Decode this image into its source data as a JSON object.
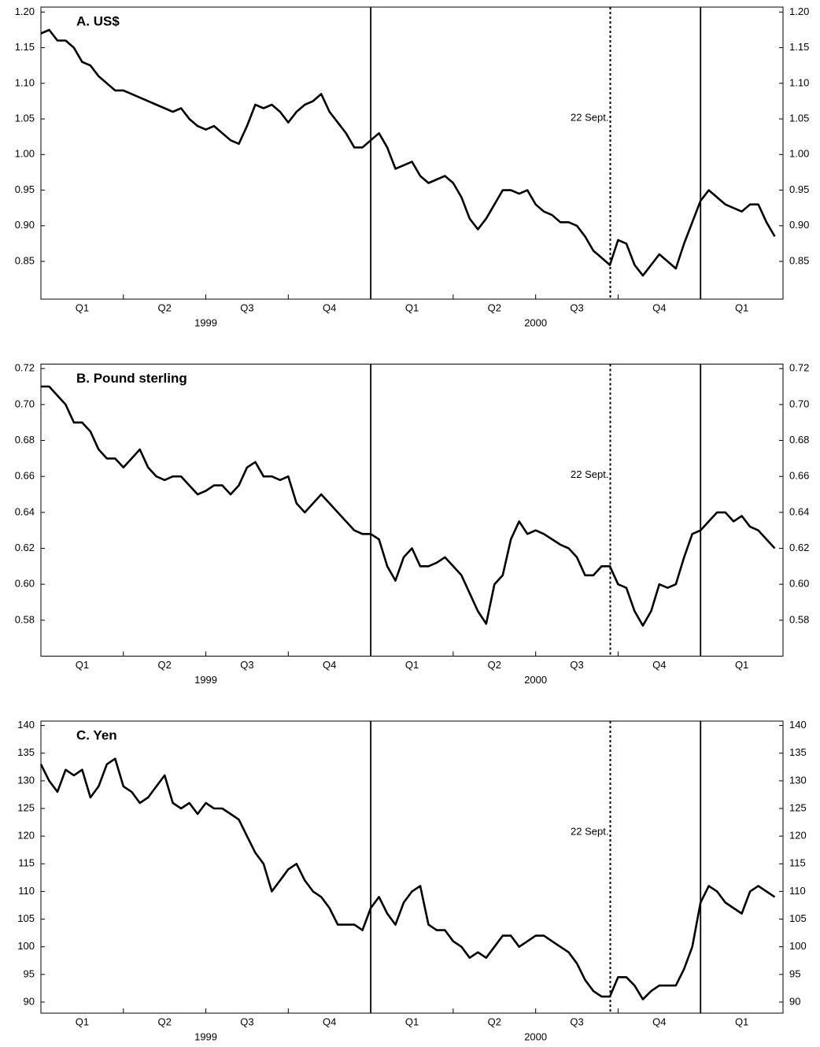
{
  "chart_data": [
    {
      "type": "line",
      "title": "A. US$",
      "color": "#000000",
      "x": [
        0,
        0.1,
        0.2,
        0.3,
        0.4,
        0.5,
        0.6,
        0.7,
        0.8,
        0.9,
        1,
        1.1,
        1.2,
        1.3,
        1.4,
        1.5,
        1.6,
        1.7,
        1.8,
        1.9,
        2,
        2.1,
        2.2,
        2.3,
        2.4,
        2.5,
        2.6,
        2.7,
        2.8,
        2.9,
        3,
        3.1,
        3.2,
        3.3,
        3.4,
        3.5,
        3.6,
        3.7,
        3.8,
        3.9,
        4,
        4.1,
        4.2,
        4.3,
        4.4,
        4.5,
        4.6,
        4.7,
        4.8,
        4.9,
        5,
        5.1,
        5.2,
        5.3,
        5.4,
        5.5,
        5.6,
        5.7,
        5.8,
        5.9,
        6,
        6.1,
        6.2,
        6.3,
        6.4,
        6.5,
        6.6,
        6.7,
        6.8,
        6.9,
        7,
        7.1,
        7.2,
        7.3,
        7.4,
        7.5,
        7.6,
        7.7,
        7.8,
        7.9,
        8,
        8.1,
        8.2,
        8.3,
        8.4,
        8.5,
        8.6,
        8.7,
        8.8,
        8.9
      ],
      "values": [
        1.17,
        1.175,
        1.16,
        1.16,
        1.15,
        1.13,
        1.125,
        1.11,
        1.1,
        1.09,
        1.09,
        1.085,
        1.08,
        1.075,
        1.07,
        1.065,
        1.06,
        1.065,
        1.05,
        1.04,
        1.035,
        1.04,
        1.03,
        1.02,
        1.015,
        1.04,
        1.07,
        1.065,
        1.07,
        1.06,
        1.045,
        1.06,
        1.07,
        1.075,
        1.085,
        1.06,
        1.045,
        1.03,
        1.01,
        1.01,
        1.02,
        1.03,
        1.01,
        0.98,
        0.985,
        0.99,
        0.97,
        0.96,
        0.965,
        0.97,
        0.96,
        0.94,
        0.91,
        0.895,
        0.91,
        0.93,
        0.95,
        0.95,
        0.945,
        0.95,
        0.93,
        0.92,
        0.915,
        0.905,
        0.905,
        0.9,
        0.885,
        0.865,
        0.855,
        0.845,
        0.88,
        0.875,
        0.845,
        0.83,
        0.845,
        0.86,
        0.85,
        0.84,
        0.875,
        0.905,
        0.935,
        0.95,
        0.94,
        0.93,
        0.925,
        0.92,
        0.93,
        0.93,
        0.905,
        0.885
      ],
      "xlim": [
        0,
        9
      ],
      "xticks": [
        1,
        2,
        3,
        4,
        5,
        6,
        7,
        8
      ],
      "ylim": [
        0.797,
        1.207
      ],
      "yticks": [
        {
          "value": 0.85,
          "label": "0.85"
        },
        {
          "value": 0.9,
          "label": "0.90"
        },
        {
          "value": 0.95,
          "label": "0.95"
        },
        {
          "value": 1.0,
          "label": "1.00"
        },
        {
          "value": 1.05,
          "label": "1.05"
        },
        {
          "value": 1.1,
          "label": "1.10"
        },
        {
          "value": 1.15,
          "label": "1.15"
        },
        {
          "value": 1.2,
          "label": "1.20"
        }
      ],
      "quarter_labels": [
        {
          "value": 0.5,
          "label": "Q1"
        },
        {
          "value": 1.5,
          "label": "Q2"
        },
        {
          "value": 2.5,
          "label": "Q3"
        },
        {
          "value": 3.5,
          "label": "Q4"
        },
        {
          "value": 4.5,
          "label": "Q1"
        },
        {
          "value": 5.5,
          "label": "Q2"
        },
        {
          "value": 6.5,
          "label": "Q3"
        },
        {
          "value": 7.5,
          "label": "Q4"
        },
        {
          "value": 8.5,
          "label": "Q1"
        }
      ],
      "year_labels": [
        {
          "value": 2,
          "label": "1999"
        },
        {
          "value": 6,
          "label": "2000"
        }
      ],
      "vlines": [
        {
          "x": 4,
          "style": "solid"
        },
        {
          "x": 8,
          "style": "solid"
        },
        {
          "x": 6.905,
          "style": "dotted",
          "label": "22 Sept."
        }
      ]
    },
    {
      "type": "line",
      "title": "B. Pound sterling",
      "color": "#000000",
      "x": [
        0,
        0.1,
        0.2,
        0.3,
        0.4,
        0.5,
        0.6,
        0.7,
        0.8,
        0.9,
        1,
        1.1,
        1.2,
        1.3,
        1.4,
        1.5,
        1.6,
        1.7,
        1.8,
        1.9,
        2,
        2.1,
        2.2,
        2.3,
        2.4,
        2.5,
        2.6,
        2.7,
        2.8,
        2.9,
        3,
        3.1,
        3.2,
        3.3,
        3.4,
        3.5,
        3.6,
        3.7,
        3.8,
        3.9,
        4,
        4.1,
        4.2,
        4.3,
        4.4,
        4.5,
        4.6,
        4.7,
        4.8,
        4.9,
        5,
        5.1,
        5.2,
        5.3,
        5.4,
        5.5,
        5.6,
        5.7,
        5.8,
        5.9,
        6,
        6.1,
        6.2,
        6.3,
        6.4,
        6.5,
        6.6,
        6.7,
        6.8,
        6.9,
        7,
        7.1,
        7.2,
        7.3,
        7.4,
        7.5,
        7.6,
        7.7,
        7.8,
        7.9,
        8,
        8.1,
        8.2,
        8.3,
        8.4,
        8.5,
        8.6,
        8.7,
        8.8,
        8.9
      ],
      "values": [
        0.71,
        0.71,
        0.705,
        0.7,
        0.69,
        0.69,
        0.685,
        0.675,
        0.67,
        0.67,
        0.665,
        0.67,
        0.675,
        0.665,
        0.66,
        0.658,
        0.66,
        0.66,
        0.655,
        0.65,
        0.652,
        0.655,
        0.655,
        0.65,
        0.655,
        0.665,
        0.668,
        0.66,
        0.66,
        0.658,
        0.66,
        0.645,
        0.64,
        0.645,
        0.65,
        0.645,
        0.64,
        0.635,
        0.63,
        0.628,
        0.628,
        0.625,
        0.61,
        0.602,
        0.615,
        0.62,
        0.61,
        0.61,
        0.612,
        0.615,
        0.61,
        0.605,
        0.595,
        0.585,
        0.578,
        0.6,
        0.605,
        0.625,
        0.635,
        0.628,
        0.63,
        0.628,
        0.625,
        0.622,
        0.62,
        0.615,
        0.605,
        0.605,
        0.61,
        0.61,
        0.6,
        0.598,
        0.585,
        0.577,
        0.585,
        0.6,
        0.598,
        0.6,
        0.615,
        0.628,
        0.63,
        0.635,
        0.64,
        0.64,
        0.635,
        0.638,
        0.632,
        0.63,
        0.625,
        0.62
      ],
      "xlim": [
        0,
        9
      ],
      "xticks": [
        1,
        2,
        3,
        4,
        5,
        6,
        7,
        8
      ],
      "ylim": [
        0.56,
        0.7225
      ],
      "yticks": [
        {
          "value": 0.58,
          "label": "0.58"
        },
        {
          "value": 0.6,
          "label": "0.60"
        },
        {
          "value": 0.62,
          "label": "0.62"
        },
        {
          "value": 0.64,
          "label": "0.64"
        },
        {
          "value": 0.66,
          "label": "0.66"
        },
        {
          "value": 0.68,
          "label": "0.68"
        },
        {
          "value": 0.7,
          "label": "0.70"
        },
        {
          "value": 0.72,
          "label": "0.72"
        }
      ],
      "quarter_labels": [
        {
          "value": 0.5,
          "label": "Q1"
        },
        {
          "value": 1.5,
          "label": "Q2"
        },
        {
          "value": 2.5,
          "label": "Q3"
        },
        {
          "value": 3.5,
          "label": "Q4"
        },
        {
          "value": 4.5,
          "label": "Q1"
        },
        {
          "value": 5.5,
          "label": "Q2"
        },
        {
          "value": 6.5,
          "label": "Q3"
        },
        {
          "value": 7.5,
          "label": "Q4"
        },
        {
          "value": 8.5,
          "label": "Q1"
        }
      ],
      "year_labels": [
        {
          "value": 2,
          "label": "1999"
        },
        {
          "value": 6,
          "label": "2000"
        }
      ],
      "vlines": [
        {
          "x": 4,
          "style": "solid"
        },
        {
          "x": 8,
          "style": "solid"
        },
        {
          "x": 6.905,
          "style": "dotted",
          "label": "22 Sept."
        }
      ]
    },
    {
      "type": "line",
      "title": "C. Yen",
      "color": "#000000",
      "x": [
        0,
        0.1,
        0.2,
        0.3,
        0.4,
        0.5,
        0.6,
        0.7,
        0.8,
        0.9,
        1,
        1.1,
        1.2,
        1.3,
        1.4,
        1.5,
        1.6,
        1.7,
        1.8,
        1.9,
        2,
        2.1,
        2.2,
        2.3,
        2.4,
        2.5,
        2.6,
        2.7,
        2.8,
        2.9,
        3,
        3.1,
        3.2,
        3.3,
        3.4,
        3.5,
        3.6,
        3.7,
        3.8,
        3.9,
        4,
        4.1,
        4.2,
        4.3,
        4.4,
        4.5,
        4.6,
        4.7,
        4.8,
        4.9,
        5,
        5.1,
        5.2,
        5.3,
        5.4,
        5.5,
        5.6,
        5.7,
        5.8,
        5.9,
        6,
        6.1,
        6.2,
        6.3,
        6.4,
        6.5,
        6.6,
        6.7,
        6.8,
        6.9,
        7,
        7.1,
        7.2,
        7.3,
        7.4,
        7.5,
        7.6,
        7.7,
        7.8,
        7.9,
        8,
        8.1,
        8.2,
        8.3,
        8.4,
        8.5,
        8.6,
        8.7,
        8.8,
        8.9
      ],
      "values": [
        133,
        130,
        128,
        132,
        131,
        132,
        127,
        129,
        133,
        134,
        129,
        128,
        126,
        127,
        129,
        131,
        126,
        125,
        126,
        124,
        126,
        125,
        125,
        124,
        123,
        120,
        117,
        115,
        110,
        112,
        114,
        115,
        112,
        110,
        109,
        107,
        104,
        104,
        104,
        103,
        107,
        109,
        106,
        104,
        108,
        110,
        111,
        104,
        103,
        103,
        101,
        100,
        98,
        99,
        98,
        100,
        102,
        102,
        100,
        101,
        102,
        102,
        101,
        100,
        99,
        97,
        94,
        92,
        91,
        91,
        94.5,
        94.5,
        93,
        90.5,
        92,
        93,
        93,
        93,
        96,
        100,
        108,
        111,
        110,
        108,
        107,
        106,
        110,
        111,
        110,
        109
      ],
      "xlim": [
        0,
        9
      ],
      "xticks": [
        1,
        2,
        3,
        4,
        5,
        6,
        7,
        8
      ],
      "ylim": [
        88,
        140.8
      ],
      "yticks": [
        90,
        95,
        100,
        105,
        110,
        115,
        120,
        125,
        130,
        135,
        140
      ],
      "quarter_labels": [
        {
          "value": 0.5,
          "label": "Q1"
        },
        {
          "value": 1.5,
          "label": "Q2"
        },
        {
          "value": 2.5,
          "label": "Q3"
        },
        {
          "value": 3.5,
          "label": "Q4"
        },
        {
          "value": 4.5,
          "label": "Q1"
        },
        {
          "value": 5.5,
          "label": "Q2"
        },
        {
          "value": 6.5,
          "label": "Q3"
        },
        {
          "value": 7.5,
          "label": "Q4"
        },
        {
          "value": 8.5,
          "label": "Q1"
        }
      ],
      "year_labels": [
        {
          "value": 2,
          "label": "1999"
        },
        {
          "value": 6,
          "label": "2000"
        }
      ],
      "vlines": [
        {
          "x": 4,
          "style": "solid"
        },
        {
          "x": 8,
          "style": "solid"
        },
        {
          "x": 6.905,
          "style": "dotted",
          "label": "22 Sept."
        }
      ]
    }
  ]
}
